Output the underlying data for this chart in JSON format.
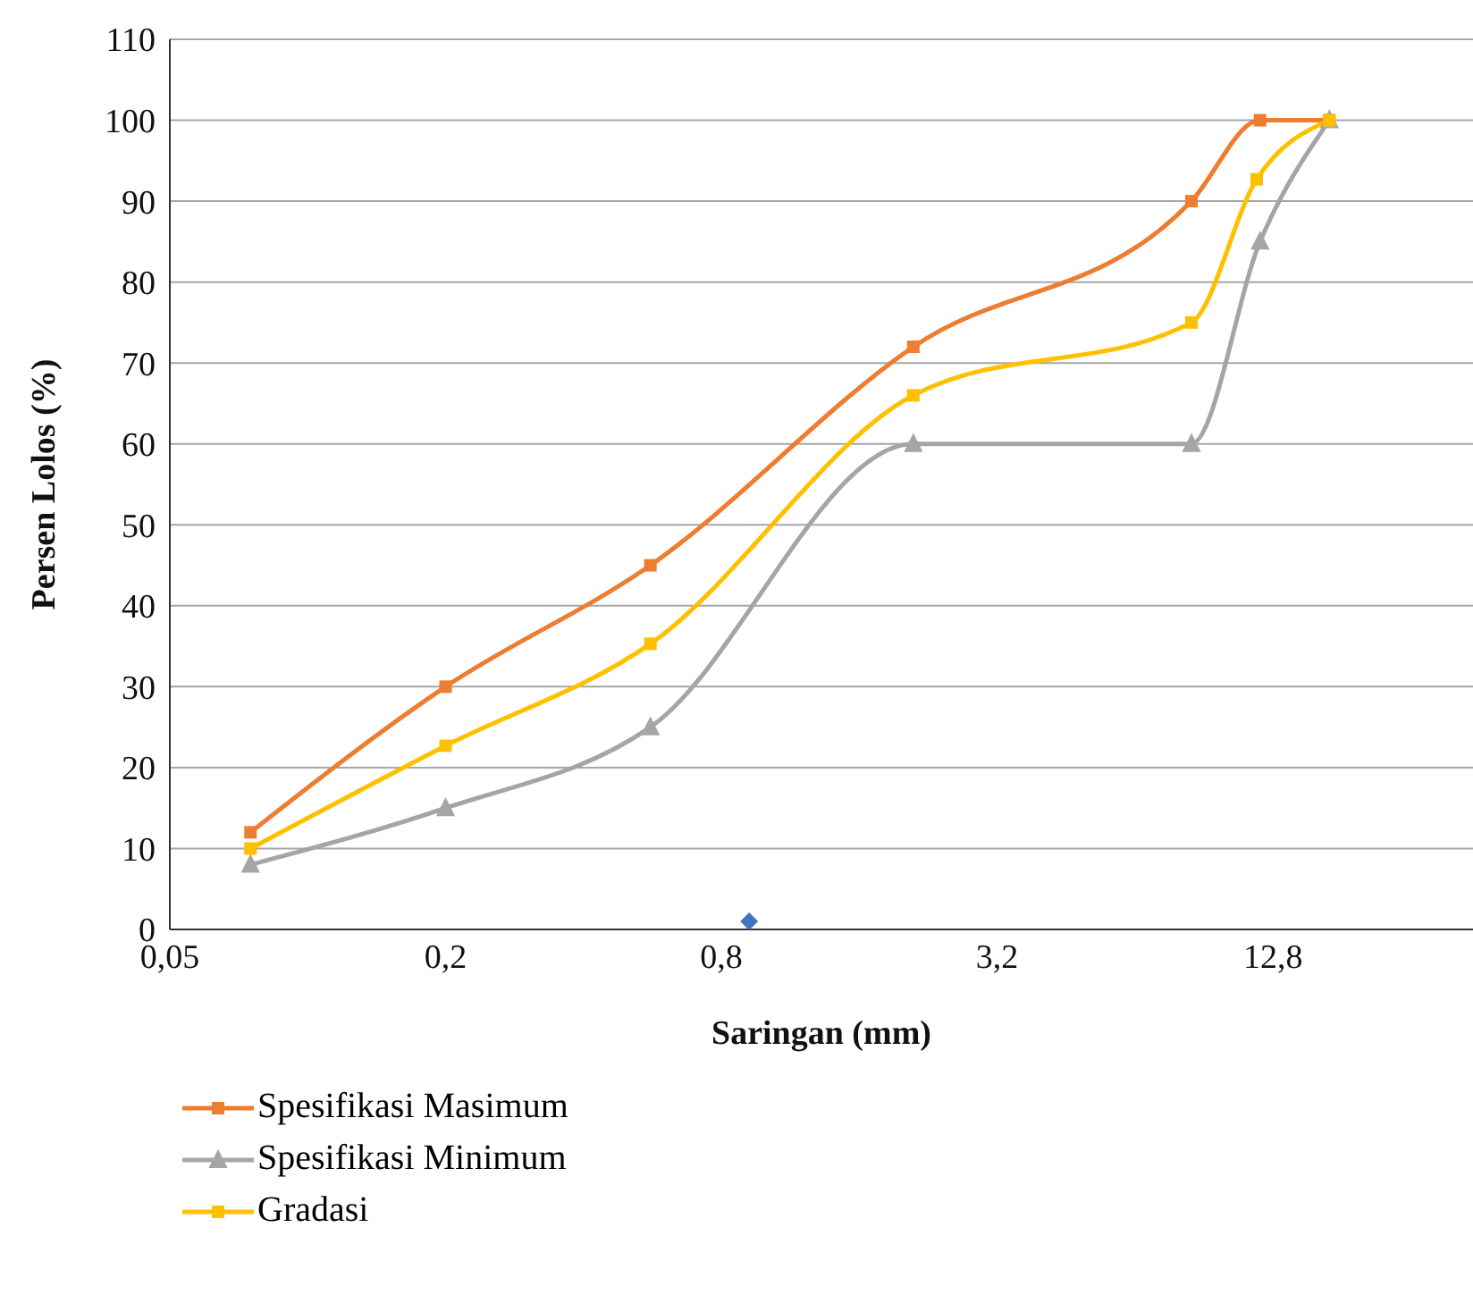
{
  "chart_data": {
    "type": "line",
    "xlabel": "Saringan (mm)",
    "ylabel": "Persen Lolos (%)",
    "log": "x",
    "xlim": [
      0.05,
      35
    ],
    "xticks": [
      {
        "value": 0.05,
        "label": "0,05"
      },
      {
        "value": 0.2,
        "label": "0,2"
      },
      {
        "value": 0.8,
        "label": "0,8"
      },
      {
        "value": 3.2,
        "label": "3,2"
      },
      {
        "value": 12.8,
        "label": "12,8"
      }
    ],
    "ylim": [
      0,
      110
    ],
    "yticks": [
      0,
      10,
      20,
      30,
      40,
      50,
      60,
      70,
      80,
      90,
      100,
      110
    ],
    "grid": "y",
    "legend": "bottom",
    "series": [
      {
        "name": "Spesifikasi Masimum",
        "color": "#ed7d31",
        "marker": "square",
        "x": [
          0.075,
          0.2,
          0.56,
          2.1,
          8.5,
          12,
          17
        ],
        "values": [
          12,
          30,
          45,
          72,
          90,
          100,
          100
        ]
      },
      {
        "name": "Spesifikasi Minimum",
        "color": "#a5a5a5",
        "marker": "triangle",
        "x": [
          0.075,
          0.2,
          0.56,
          2.1,
          8.5,
          12,
          17
        ],
        "values": [
          8,
          15,
          25,
          60,
          60,
          85,
          100
        ]
      },
      {
        "name": "Gradasi",
        "color": "#ffc000",
        "marker": "square",
        "x": [
          0.075,
          0.2,
          0.56,
          2.1,
          8.5,
          11.8,
          17
        ],
        "values": [
          10,
          22.7,
          35.3,
          66,
          75,
          92.7,
          100
        ]
      },
      {
        "type": "scatter",
        "color": "#4472c4",
        "marker": "diamond",
        "x": [
          0.92
        ],
        "values": [
          1
        ]
      }
    ]
  }
}
